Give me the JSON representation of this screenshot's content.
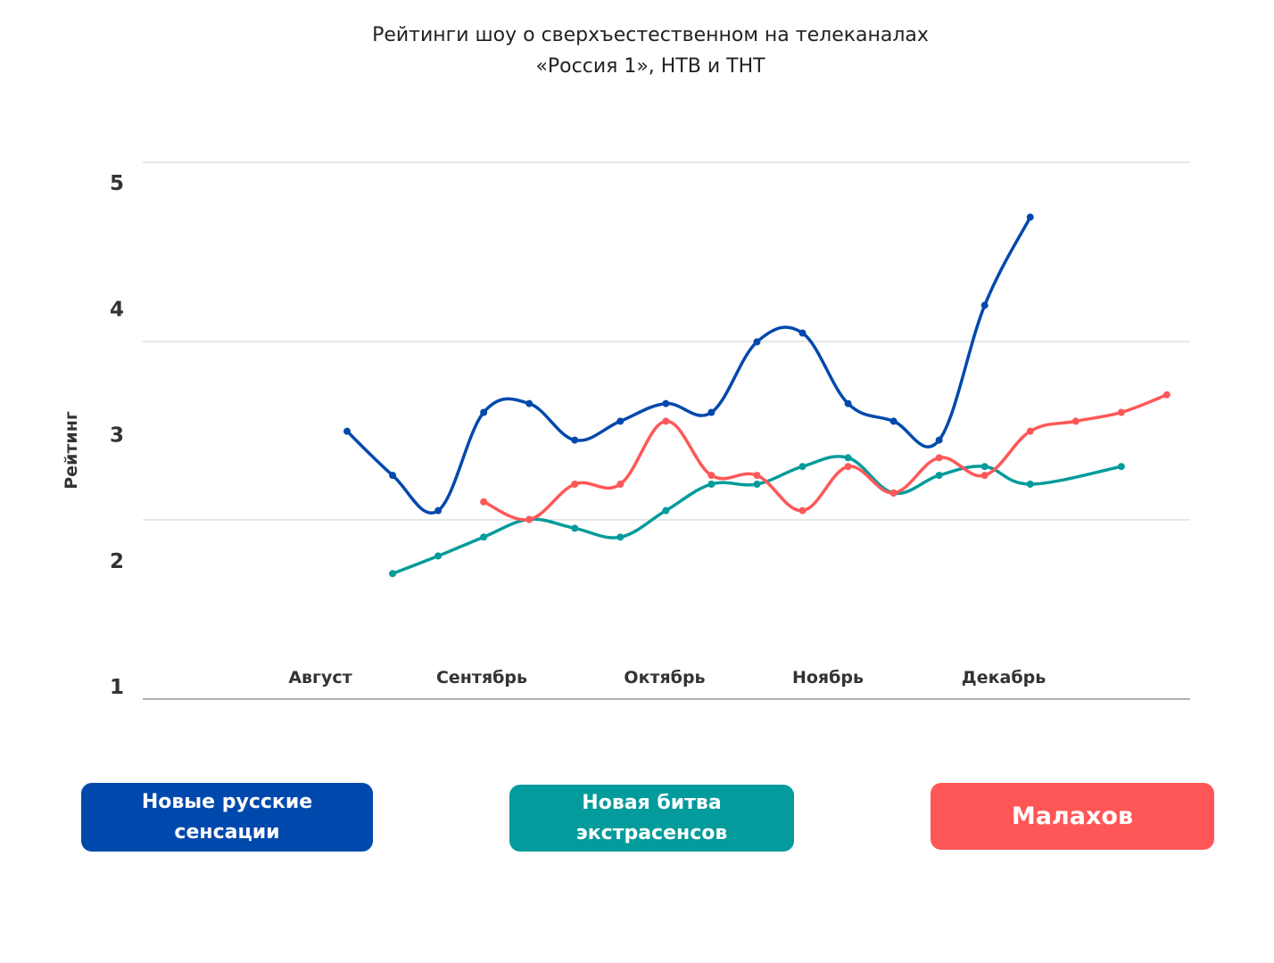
{
  "chart_data": {
    "type": "line",
    "title_lines": [
      "Рейтинги шоу о сверхъестественном на телеканалах",
      "«Россия 1»,  НТВ и ТНТ"
    ],
    "ylabel": "Рейтинг",
    "xlabel": "",
    "y_ticks": [
      "1",
      "2",
      "3",
      "4",
      "5"
    ],
    "ylim": [
      1,
      5
    ],
    "x_tick_labels": [
      "Август",
      "Сентябрь",
      "Октябрь",
      "Ноябрь",
      "Декабрь"
    ],
    "grid": true,
    "smooth": true,
    "legend_position": "bottom",
    "series": [
      {
        "name": "Новые русские сенсации",
        "color": "#0049AC",
        "values": [
          3.02,
          2.67,
          2.39,
          3.17,
          3.24,
          2.95,
          3.1,
          3.24,
          3.17,
          3.73,
          3.8,
          3.24,
          3.1,
          2.95,
          4.02,
          4.72,
          null,
          null,
          null
        ]
      },
      {
        "name": "Новая битва экстрасенсов",
        "color": "#039B9B",
        "values": [
          null,
          1.89,
          2.03,
          2.18,
          2.32,
          2.25,
          2.18,
          2.39,
          2.6,
          2.6,
          2.74,
          2.81,
          2.53,
          2.67,
          2.74,
          2.6,
          null,
          2.74,
          null
        ]
      },
      {
        "name": "Малахов",
        "color": "#FF5757",
        "values": [
          null,
          null,
          null,
          2.46,
          2.32,
          2.6,
          2.6,
          3.1,
          2.67,
          2.67,
          2.39,
          2.74,
          2.53,
          2.81,
          2.67,
          3.02,
          3.1,
          3.17,
          3.31
        ]
      }
    ]
  },
  "legend": [
    {
      "lines": [
        "Новые русские",
        "сенсации"
      ],
      "color": "#0049AC"
    },
    {
      "lines": [
        "Новая битва",
        "экстрасенсов"
      ],
      "color": "#039B9B"
    },
    {
      "lines": [
        "Малахов"
      ],
      "color": "#FF5757"
    }
  ]
}
